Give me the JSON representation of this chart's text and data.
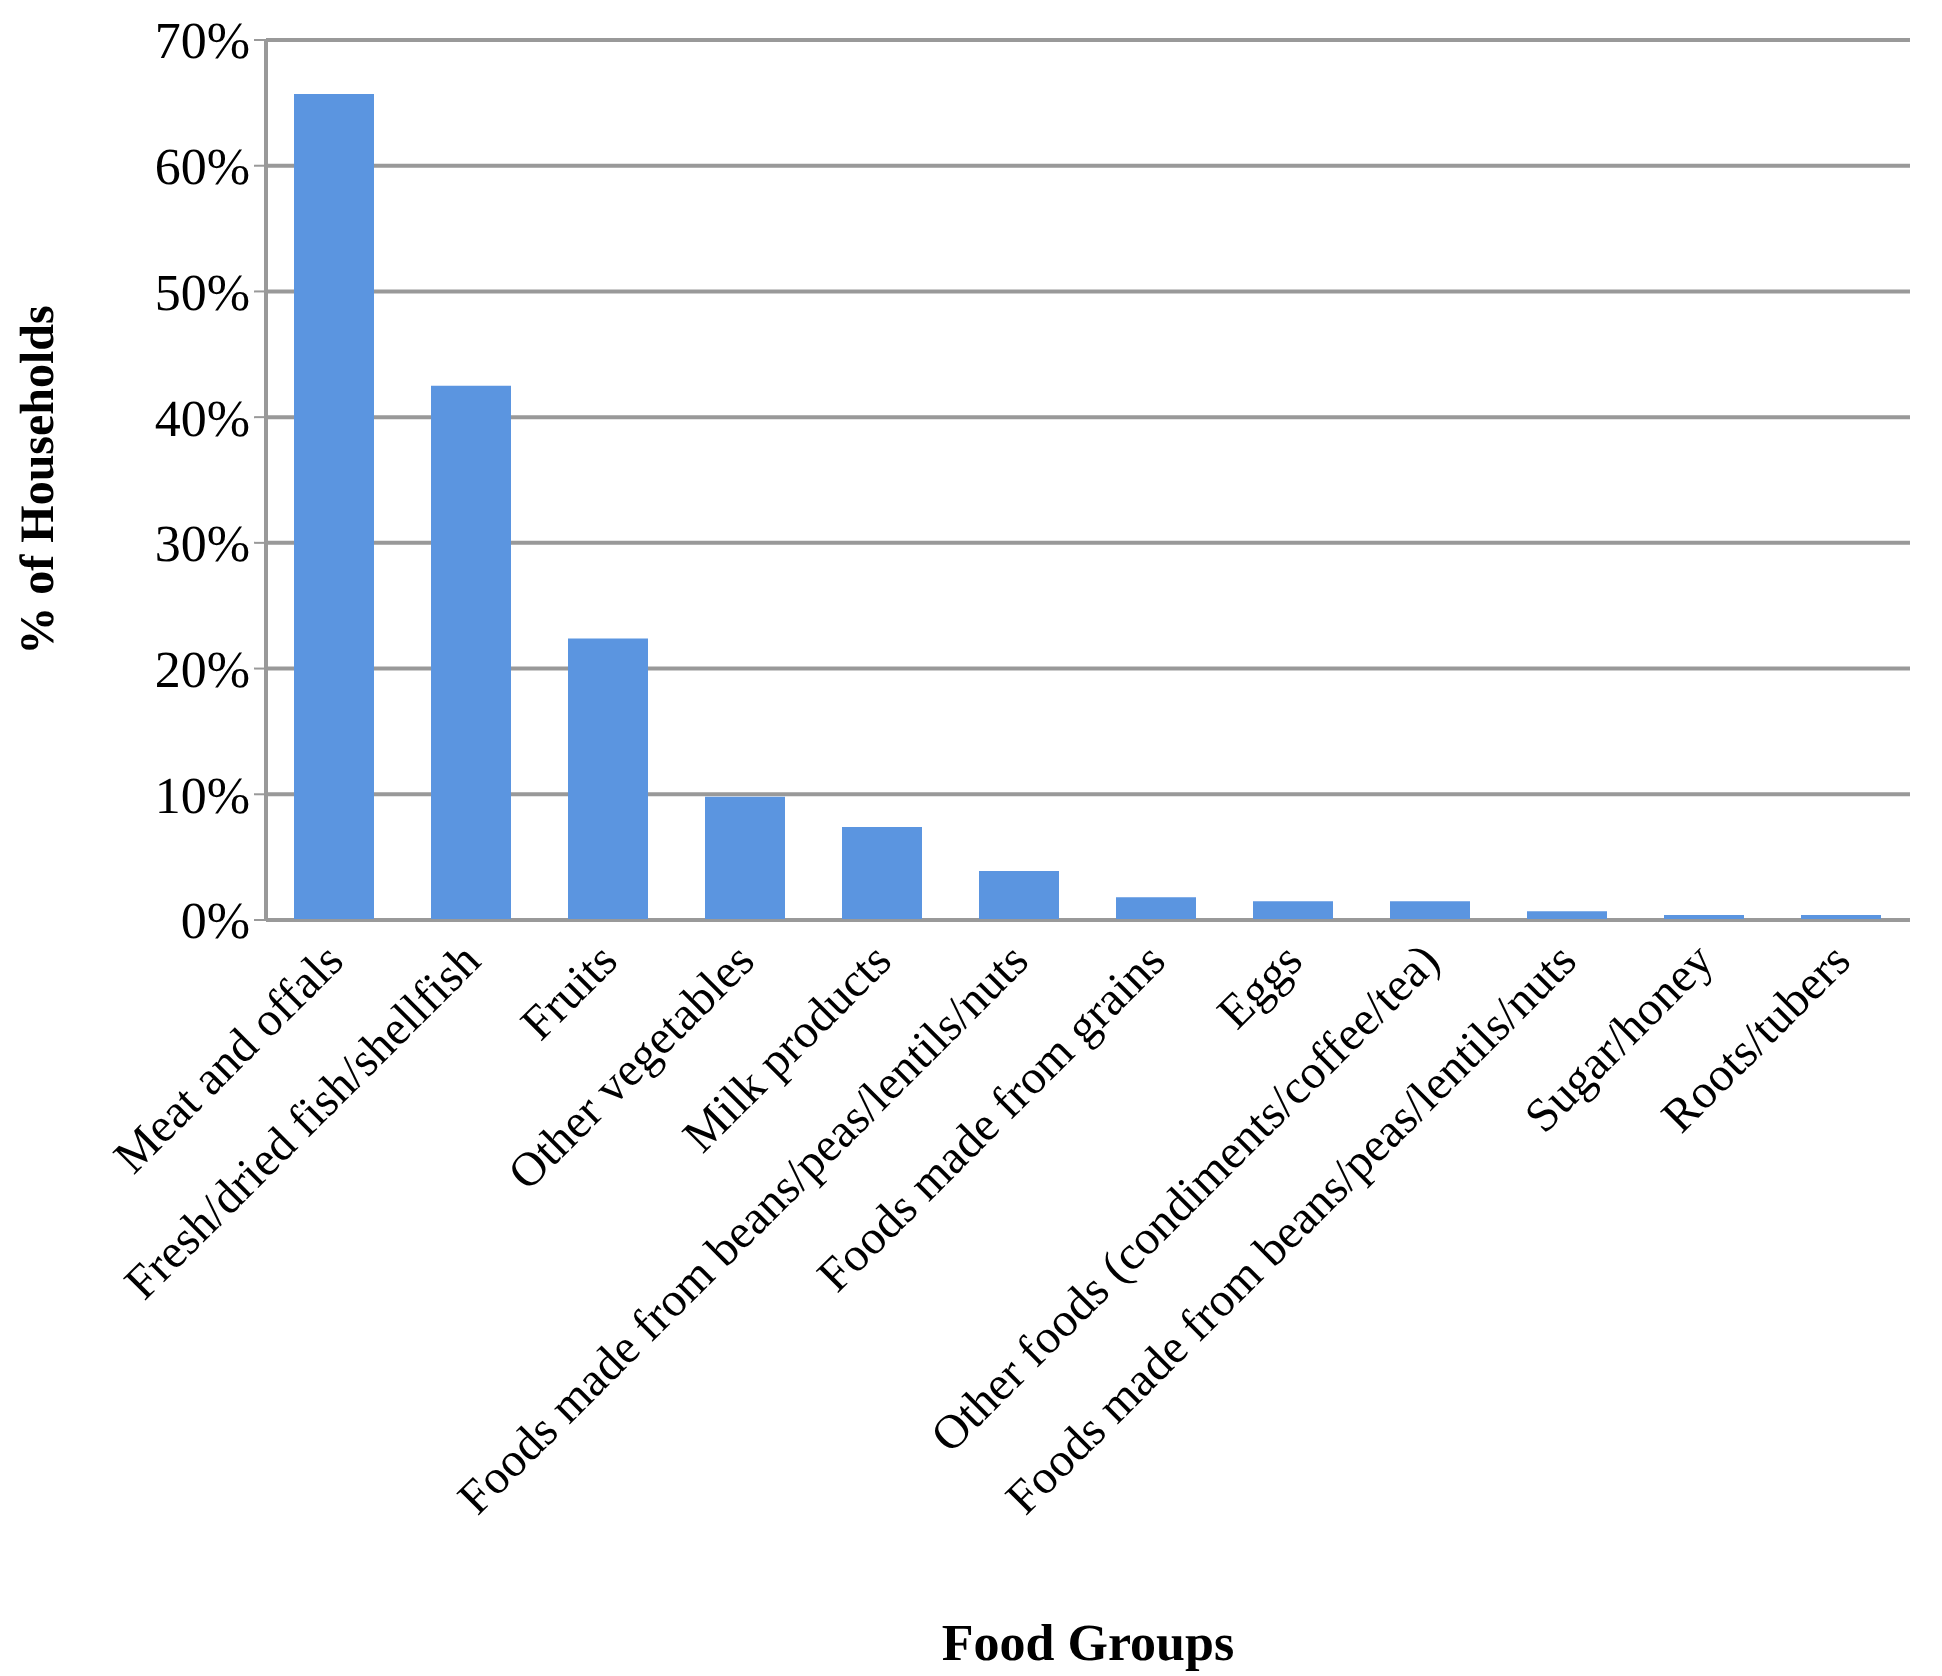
{
  "chart_data": {
    "type": "bar",
    "xlabel": "Food Groups",
    "ylabel": "% of Households",
    "categories": [
      "Meat and offals",
      "Fresh/dried fish/shellfish",
      "Fruits",
      "Other vegetables",
      "Milk products",
      "Foods made from beans/peas/lentils/nuts",
      "Foods made from grains",
      "Eggs",
      "Other foods (condiments/coffee/tea)",
      "Foods made from beans/peas/lentils/nuts",
      "Sugar/honey",
      "Roots/tubers"
    ],
    "values": [
      65.7,
      42.5,
      22.4,
      9.8,
      7.4,
      3.9,
      1.8,
      1.5,
      1.5,
      0.7,
      0.4,
      0.4
    ],
    "color": "#5b95e0",
    "ylim": [
      0,
      70
    ],
    "yticks": [
      {
        "value": 0,
        "label": "0%"
      },
      {
        "value": 10,
        "label": "10%"
      },
      {
        "value": 20,
        "label": "20%"
      },
      {
        "value": 30,
        "label": "30%"
      },
      {
        "value": 40,
        "label": "40%"
      },
      {
        "value": 50,
        "label": "50%"
      },
      {
        "value": 60,
        "label": "60%"
      },
      {
        "value": 70,
        "label": "70%"
      }
    ],
    "grid": "y",
    "legend": false
  }
}
